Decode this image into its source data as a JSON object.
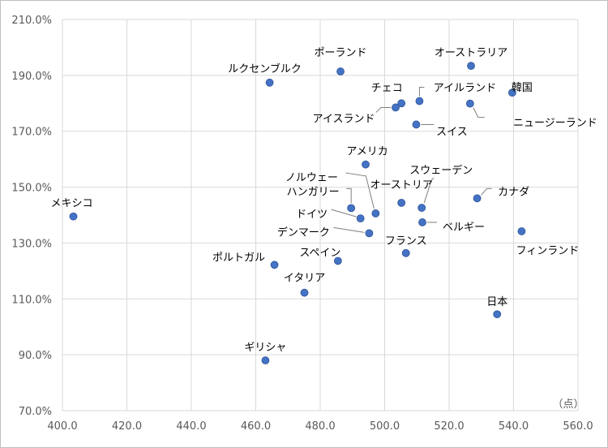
{
  "chart_data": {
    "type": "scatter",
    "title": "",
    "xlabel": "",
    "ylabel": "",
    "x_unit_label": "（点）",
    "xlim": [
      400,
      560
    ],
    "ylim": [
      70,
      210
    ],
    "x_ticks": [
      400,
      420,
      440,
      460,
      480,
      500,
      520,
      540,
      560
    ],
    "y_ticks": [
      70,
      90,
      110,
      130,
      150,
      170,
      190,
      210
    ],
    "x_tick_labels": [
      "400.0",
      "420.0",
      "440.0",
      "460.0",
      "480.0",
      "500.0",
      "520.0",
      "540.0",
      "560.0"
    ],
    "y_tick_labels": [
      "70.0%",
      "90.0%",
      "110.0%",
      "130.0%",
      "150.0%",
      "170.0%",
      "190.0%",
      "210.0%"
    ],
    "grid": true,
    "marker_color": "#4472c4",
    "points": [
      {
        "label": "メキシコ",
        "x": 403.4,
        "y": 139.5
      },
      {
        "label": "ルクセンブルク",
        "x": 464.3,
        "y": 187.4
      },
      {
        "label": "ポーランド",
        "x": 486.3,
        "y": 191.4
      },
      {
        "label": "オーストラリア",
        "x": 526.8,
        "y": 193.4
      },
      {
        "label": "韓国",
        "x": 539.6,
        "y": 183.8
      },
      {
        "label": "チェコ",
        "x": 505.2,
        "y": 180.0
      },
      {
        "label": "アイルランド",
        "x": 510.8,
        "y": 180.8
      },
      {
        "label": "アイスランド",
        "x": 503.4,
        "y": 178.5
      },
      {
        "label": "ニュージーランド",
        "x": 526.5,
        "y": 179.9
      },
      {
        "label": "スイス",
        "x": 509.8,
        "y": 172.4
      },
      {
        "label": "アメリカ",
        "x": 494.1,
        "y": 158.1
      },
      {
        "label": "ノルウェー",
        "x": 497.2,
        "y": 140.6
      },
      {
        "label": "スウェーデン",
        "x": 511.5,
        "y": 142.6
      },
      {
        "label": "カナダ",
        "x": 528.7,
        "y": 146.0
      },
      {
        "label": "ハンガリー",
        "x": 489.6,
        "y": 142.5
      },
      {
        "label": "オーストリア",
        "x": 505.2,
        "y": 144.4
      },
      {
        "label": "ドイツ",
        "x": 492.5,
        "y": 138.8
      },
      {
        "label": "ベルギー",
        "x": 511.7,
        "y": 137.4
      },
      {
        "label": "デンマーク",
        "x": 495.2,
        "y": 133.5
      },
      {
        "label": "フランス",
        "x": 506.6,
        "y": 126.4
      },
      {
        "label": "フィンランド",
        "x": 542.5,
        "y": 134.2
      },
      {
        "label": "ポルトガル",
        "x": 465.8,
        "y": 122.2
      },
      {
        "label": "スペイン",
        "x": 485.5,
        "y": 123.6
      },
      {
        "label": "イタリア",
        "x": 475.1,
        "y": 112.2
      },
      {
        "label": "日本",
        "x": 534.9,
        "y": 104.5
      },
      {
        "label": "ギリシャ",
        "x": 463.0,
        "y": 88.0
      }
    ]
  }
}
